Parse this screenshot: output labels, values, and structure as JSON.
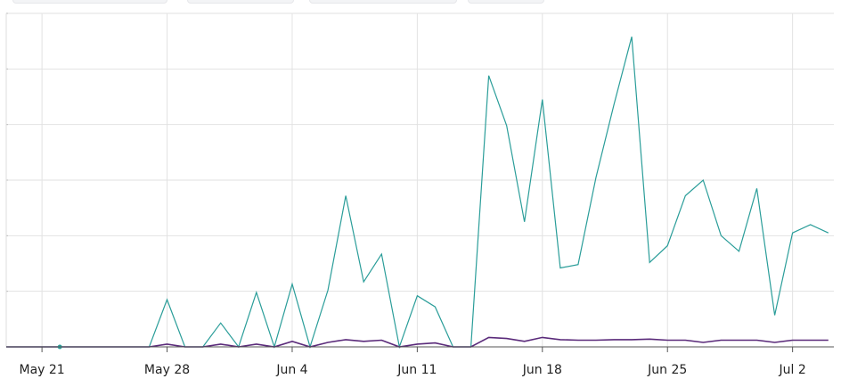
{
  "chart_data": {
    "type": "line",
    "title": "",
    "xlabel": "",
    "ylabel": "",
    "grid": true,
    "x_start": "2023-05-19",
    "x_step_days": 1,
    "x_tick_labels": [
      "May 21",
      "May 28",
      "Jun 4",
      "Jun 11",
      "Jun 18",
      "Jun 25",
      "Jul 2"
    ],
    "ylim": [
      0,
      6
    ],
    "series": [
      {
        "color": "#2a9d99",
        "values": [
          0,
          0,
          0,
          0,
          0,
          0,
          0,
          0,
          0,
          0.85,
          0,
          0,
          0.43,
          0,
          0.98,
          0,
          1.13,
          0,
          1.02,
          2.72,
          1.17,
          1.67,
          0,
          0.92,
          0.72,
          0,
          0,
          4.88,
          3.98,
          2.25,
          4.45,
          1.42,
          1.48,
          3.05,
          4.35,
          5.58,
          1.52,
          1.82,
          2.72,
          3.0,
          2.0,
          1.72,
          2.85,
          0.57,
          2.05,
          2.2,
          2.05
        ]
      },
      {
        "color": "#5a2a7a",
        "values": [
          0,
          0,
          0,
          0,
          0,
          0,
          0,
          0,
          0,
          0.05,
          0,
          0,
          0.05,
          0,
          0.05,
          0,
          0.1,
          0,
          0.08,
          0.13,
          0.1,
          0.12,
          0,
          0.05,
          0.07,
          0,
          0,
          0.17,
          0.15,
          0.1,
          0.17,
          0.13,
          0.12,
          0.12,
          0.13,
          0.13,
          0.14,
          0.12,
          0.12,
          0.08,
          0.12,
          0.12,
          0.12,
          0.08,
          0.12,
          0.12,
          0.12
        ]
      }
    ]
  },
  "icons": {
    "point_marker": "circle-marker"
  },
  "colors": {
    "grid": "#e2e2e2",
    "axis": "#555555"
  }
}
